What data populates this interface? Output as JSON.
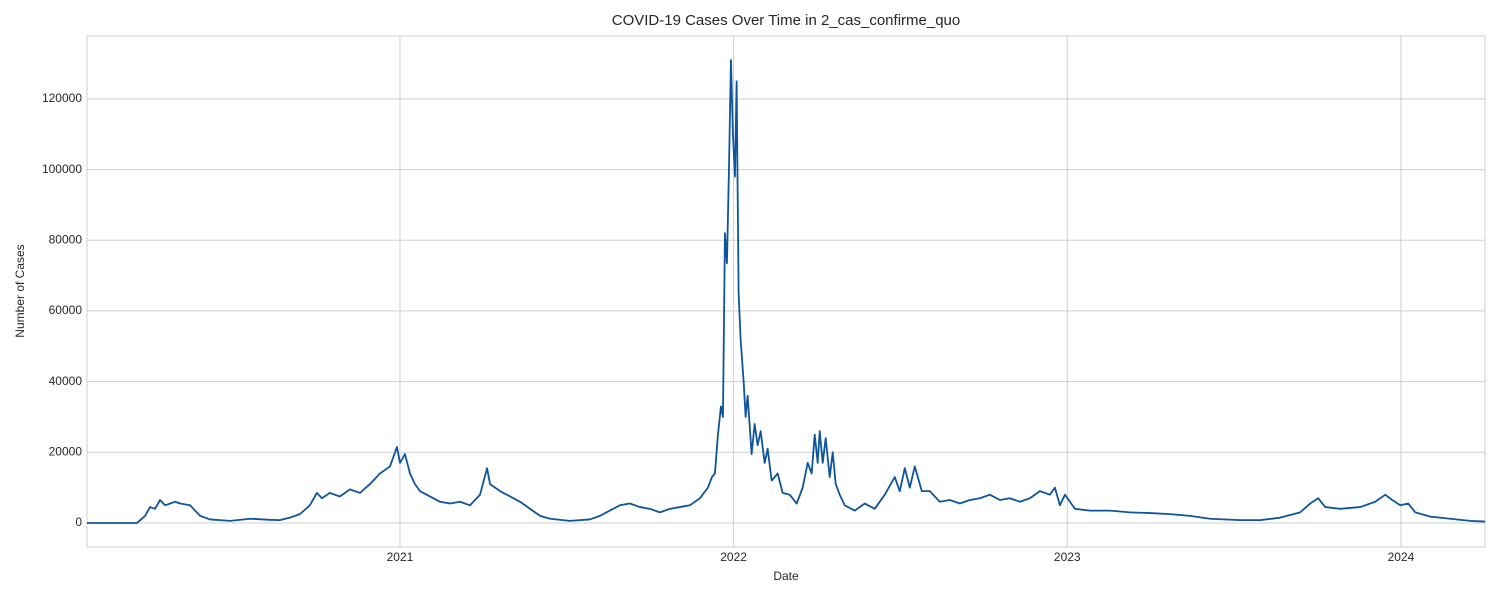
{
  "chart_data": {
    "type": "line",
    "title": "COVID-19 Cases Over Time in 2_cas_confirme_quo",
    "x_label": "Date",
    "y_label": "Number of Cases",
    "x": [
      2020.062,
      2020.212,
      2020.236,
      2020.251,
      2020.266,
      2020.281,
      2020.296,
      2020.326,
      2020.341,
      2020.371,
      2020.386,
      2020.401,
      2020.431,
      2020.491,
      2020.551,
      2020.61,
      2020.64,
      2020.67,
      2020.7,
      2020.73,
      2020.751,
      2020.766,
      2020.79,
      2020.82,
      2020.85,
      2020.88,
      2020.91,
      2020.94,
      2020.97,
      2020.991,
      2021.0,
      2021.015,
      2021.03,
      2021.045,
      2021.06,
      2021.09,
      2021.12,
      2021.15,
      2021.18,
      2021.21,
      2021.24,
      2021.261,
      2021.27,
      2021.3,
      2021.33,
      2021.36,
      2021.39,
      2021.42,
      2021.45,
      2021.509,
      2021.569,
      2021.599,
      2021.629,
      2021.659,
      2021.689,
      2021.719,
      2021.749,
      2021.779,
      2021.809,
      2021.839,
      2021.869,
      2021.899,
      2021.923,
      2021.935,
      2021.944,
      2021.953,
      2021.962,
      2021.968,
      2021.974,
      2021.98,
      2021.986,
      2021.992,
      2021.998,
      2022.004,
      2022.009,
      2022.015,
      2022.021,
      2022.03,
      2022.036,
      2022.042,
      2022.054,
      2022.063,
      2022.072,
      2022.081,
      2022.093,
      2022.102,
      2022.114,
      2022.132,
      2022.147,
      2022.168,
      2022.189,
      2022.207,
      2022.222,
      2022.234,
      2022.243,
      2022.252,
      2022.258,
      2022.267,
      2022.276,
      2022.288,
      2022.297,
      2022.306,
      2022.318,
      2022.333,
      2022.363,
      2022.393,
      2022.423,
      2022.453,
      2022.483,
      2022.498,
      2022.513,
      2022.528,
      2022.543,
      2022.564,
      2022.588,
      2022.618,
      2022.648,
      2022.678,
      2022.708,
      2022.738,
      2022.768,
      2022.798,
      2022.828,
      2022.858,
      2022.888,
      2022.918,
      2022.948,
      2022.963,
      2022.978,
      2022.993,
      2023.008,
      2023.023,
      2023.068,
      2023.128,
      2023.188,
      2023.248,
      2023.308,
      2023.368,
      2023.428,
      2023.518,
      2023.578,
      2023.638,
      2023.698,
      2023.728,
      2023.752,
      2023.773,
      2023.818,
      2023.878,
      2023.923,
      2023.953,
      2023.974,
      2023.998,
      2024.022,
      2024.043,
      2024.088,
      2024.148,
      2024.208,
      2024.252
    ],
    "series": [
      {
        "name": "2_cas_confirme_quo",
        "color": "#0f559b",
        "values": [
          0,
          0,
          2000,
          4500,
          4000,
          6500,
          5000,
          6000,
          5500,
          5000,
          3500,
          2000,
          1000,
          600,
          1200,
          900,
          800,
          1500,
          2500,
          5000,
          8500,
          7000,
          8500,
          7500,
          9500,
          8500,
          11000,
          14000,
          16000,
          21500,
          17000,
          19500,
          14000,
          11000,
          9000,
          7500,
          6000,
          5500,
          6000,
          5000,
          8000,
          15500,
          11000,
          9000,
          7500,
          6000,
          4000,
          2000,
          1200,
          600,
          1000,
          2000,
          3500,
          5000,
          5500,
          4500,
          4000,
          3000,
          4000,
          4500,
          5000,
          7000,
          10000,
          13000,
          14000,
          25000,
          33000,
          30000,
          82000,
          73500,
          100000,
          131000,
          110000,
          98000,
          125000,
          65000,
          52000,
          40000,
          30000,
          36000,
          19500,
          28000,
          22000,
          26000,
          17000,
          21000,
          12000,
          14000,
          8500,
          8000,
          5500,
          10000,
          17000,
          14000,
          25000,
          17000,
          26000,
          17000,
          24000,
          13000,
          20000,
          11000,
          8000,
          5000,
          3500,
          5500,
          4000,
          8000,
          13000,
          9000,
          15500,
          10000,
          16000,
          9000,
          9000,
          6000,
          6500,
          5500,
          6500,
          7000,
          8000,
          6500,
          7000,
          6000,
          7000,
          9000,
          8000,
          10000,
          5000,
          8000,
          6000,
          4000,
          3500,
          3500,
          3000,
          2800,
          2500,
          2000,
          1200,
          800,
          800,
          1500,
          3000,
          5500,
          7000,
          4500,
          4000,
          4500,
          6000,
          8000,
          6500,
          5000,
          5500,
          3000,
          1800,
          1200,
          600,
          400
        ]
      }
    ],
    "xlim": [
      2020.062,
      2024.252
    ],
    "xticks": [
      2021,
      2022,
      2023,
      2024
    ],
    "ylim": [
      -6800,
      137800
    ],
    "yticks": [
      0,
      20000,
      40000,
      60000,
      80000,
      100000,
      120000
    ],
    "grid": true
  }
}
